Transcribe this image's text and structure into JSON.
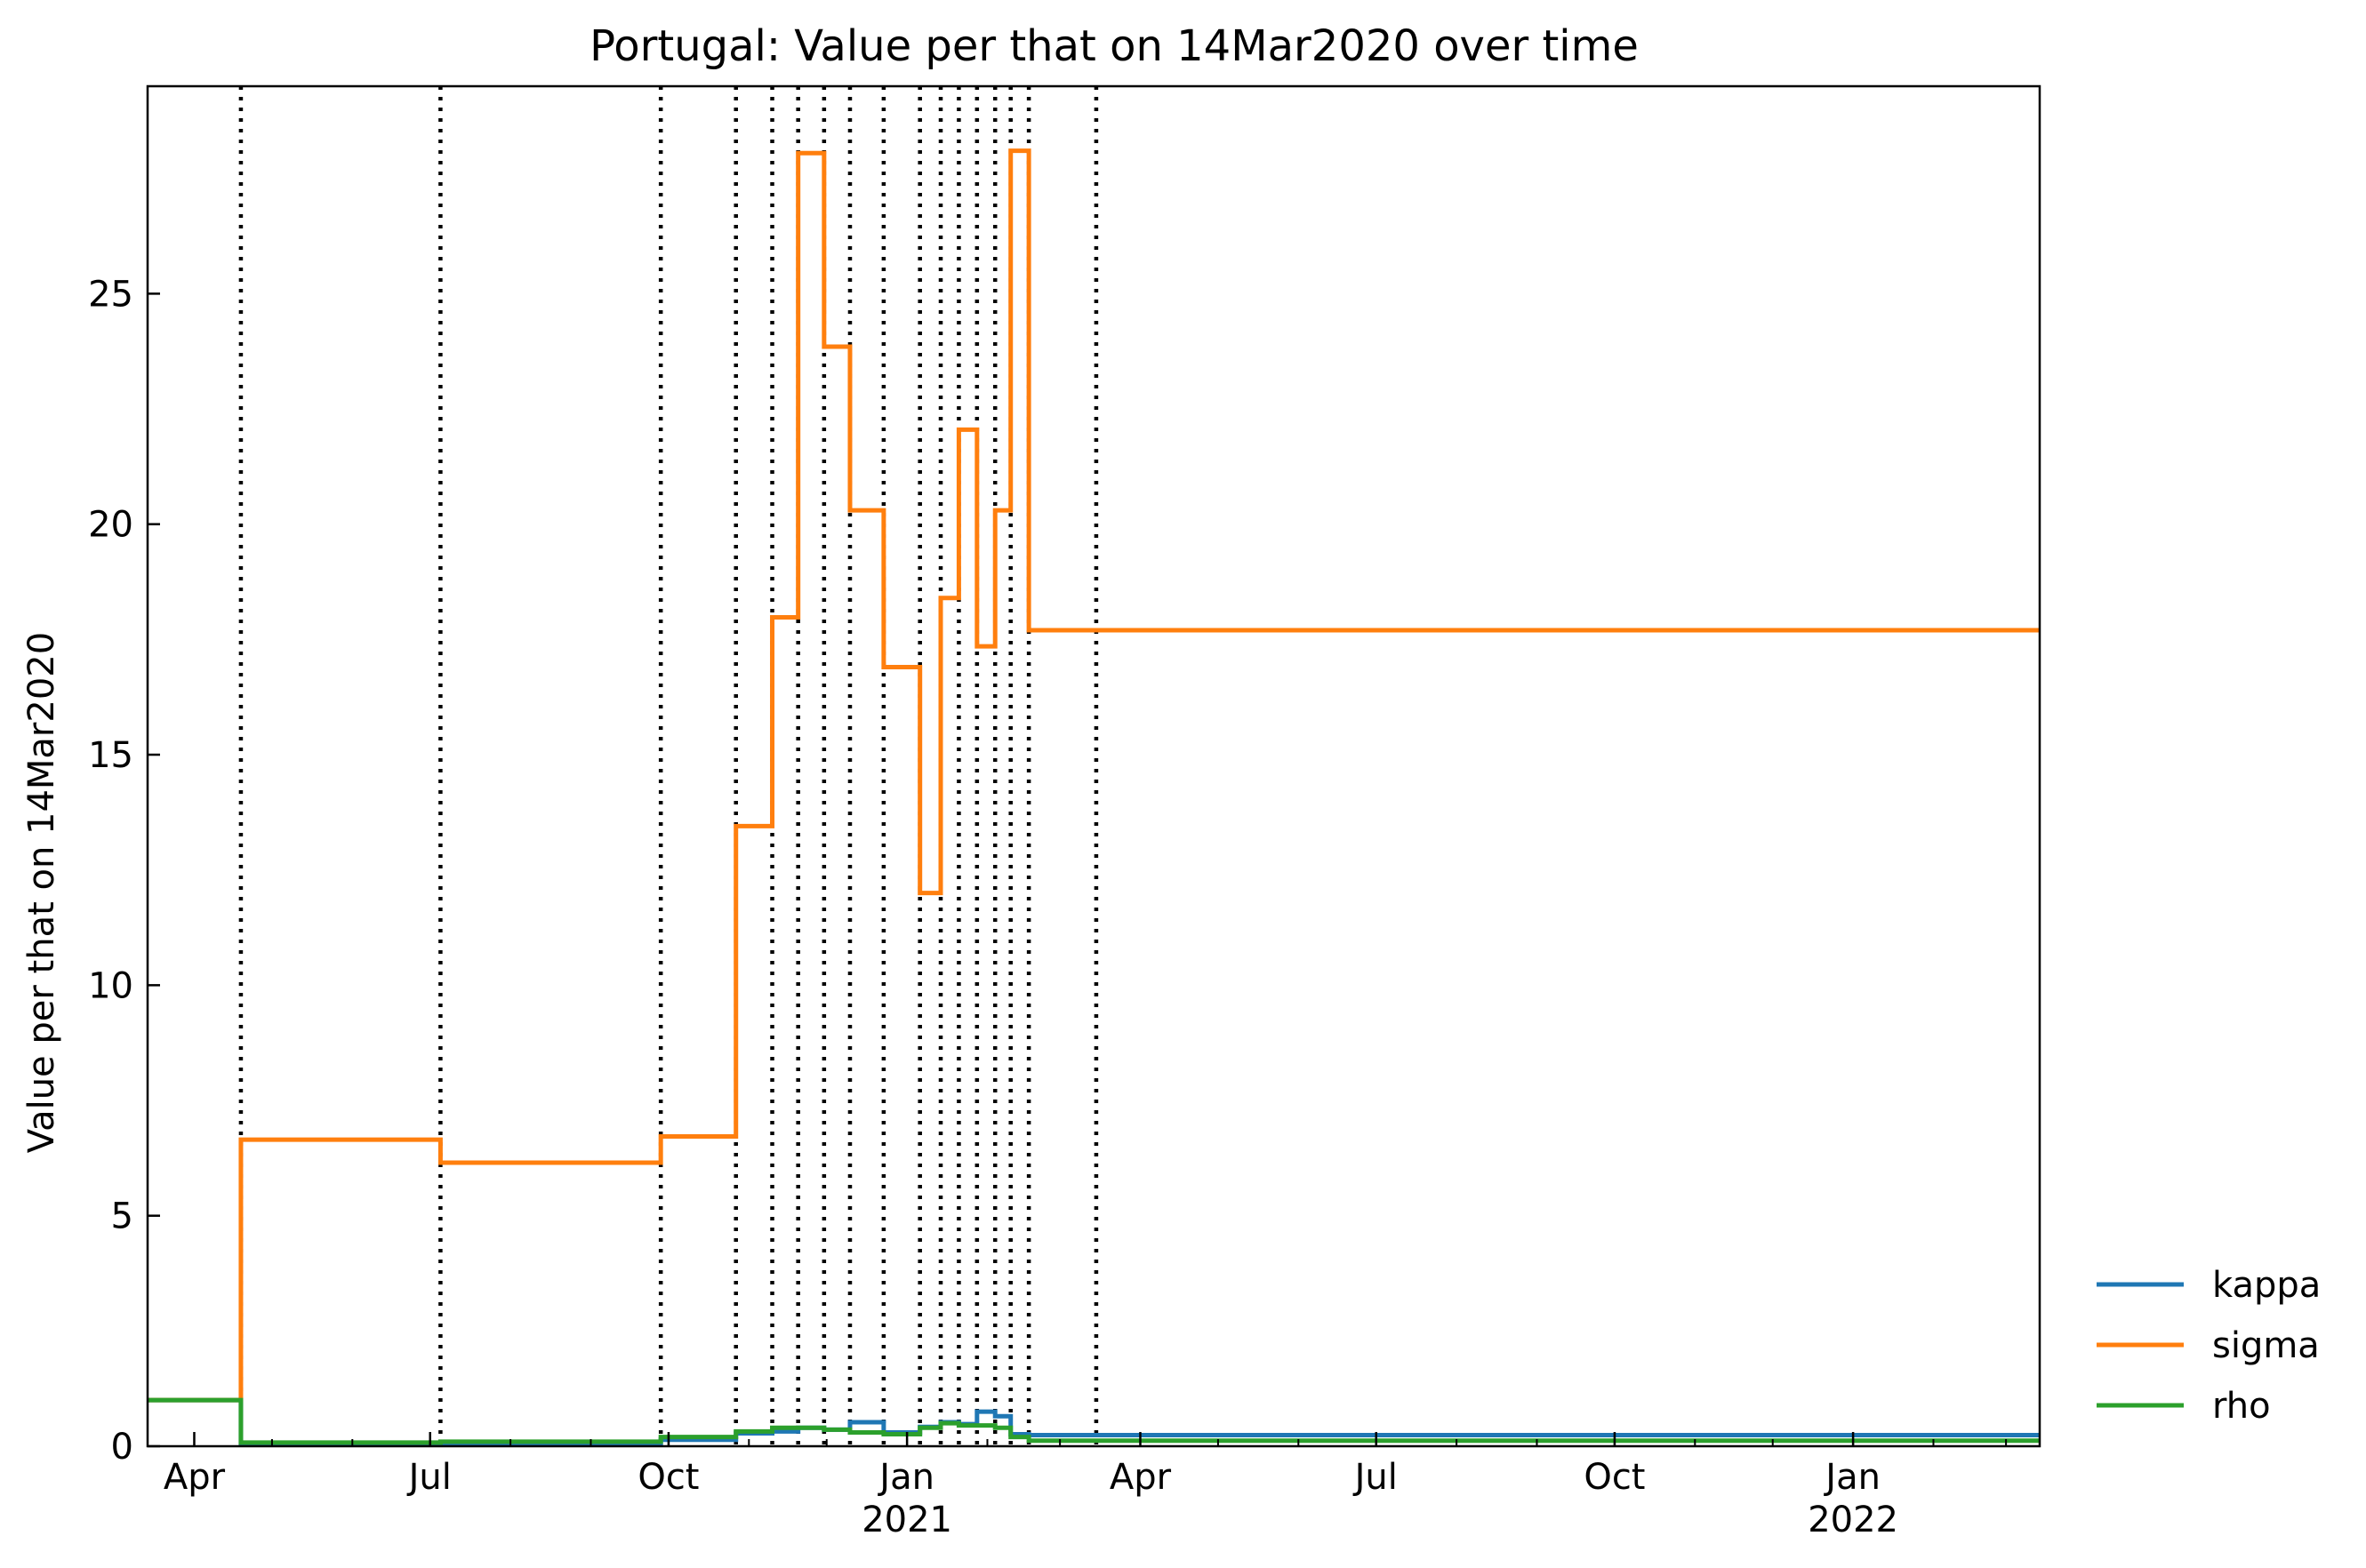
{
  "chart_data": {
    "type": "line",
    "step": "post",
    "title": "Portugal: Value per that on 14Mar2020 over time",
    "xlabel": "",
    "ylabel": "Value per that on 14Mar2020",
    "xlim": [
      "2020-03-14",
      "2022-03-14"
    ],
    "ylim": [
      0,
      29.5
    ],
    "yticks": [
      0,
      5,
      10,
      15,
      20,
      25
    ],
    "xticks": [
      {
        "date": "2020-04-01",
        "label": "Apr",
        "sublabel": ""
      },
      {
        "date": "2020-07-01",
        "label": "Jul",
        "sublabel": ""
      },
      {
        "date": "2020-10-01",
        "label": "Oct",
        "sublabel": ""
      },
      {
        "date": "2021-01-01",
        "label": "Jan",
        "sublabel": "2021"
      },
      {
        "date": "2021-04-01",
        "label": "Apr",
        "sublabel": ""
      },
      {
        "date": "2021-07-01",
        "label": "Jul",
        "sublabel": ""
      },
      {
        "date": "2021-10-01",
        "label": "Oct",
        "sublabel": ""
      },
      {
        "date": "2022-01-01",
        "label": "Jan",
        "sublabel": "2022"
      }
    ],
    "grid": false,
    "legend_position": "right-bottom, outside plot",
    "vlines": [
      "2020-04-19",
      "2020-07-05",
      "2020-09-28",
      "2020-10-27",
      "2020-11-10",
      "2020-11-20",
      "2020-11-30",
      "2020-12-10",
      "2020-12-23",
      "2021-01-06",
      "2021-01-14",
      "2021-01-21",
      "2021-01-28",
      "2021-02-04",
      "2021-02-10",
      "2021-02-17",
      "2021-03-15"
    ],
    "vline_style": "dotted black",
    "series": [
      {
        "name": "kappa",
        "color": "#1f77b4",
        "x": [
          "2020-03-14",
          "2020-04-19",
          "2020-07-05",
          "2020-09-28",
          "2020-10-27",
          "2020-11-10",
          "2020-11-20",
          "2020-11-30",
          "2020-12-10",
          "2020-12-23",
          "2021-01-06",
          "2021-01-14",
          "2021-01-21",
          "2021-01-28",
          "2021-02-04",
          "2021-02-10",
          "2021-02-17",
          "2021-03-15",
          "2022-03-14"
        ],
        "values": [
          1.0,
          0.06,
          0.05,
          0.14,
          0.28,
          0.32,
          0.4,
          0.36,
          0.52,
          0.3,
          0.42,
          0.52,
          0.48,
          0.75,
          0.65,
          0.26,
          0.24,
          0.24,
          0.24
        ]
      },
      {
        "name": "sigma",
        "color": "#ff7f0e",
        "x": [
          "2020-03-14",
          "2020-04-19",
          "2020-07-05",
          "2020-09-28",
          "2020-10-27",
          "2020-11-10",
          "2020-11-20",
          "2020-11-30",
          "2020-12-10",
          "2020-12-23",
          "2021-01-06",
          "2021-01-14",
          "2021-01-21",
          "2021-01-28",
          "2021-02-04",
          "2021-02-10",
          "2021-02-17",
          "2021-03-15",
          "2022-03-14"
        ],
        "values": [
          1.0,
          6.65,
          6.15,
          6.72,
          13.45,
          17.98,
          28.05,
          23.85,
          20.3,
          16.9,
          12.0,
          18.4,
          22.05,
          17.35,
          20.3,
          28.1,
          17.7,
          17.7,
          17.7
        ]
      },
      {
        "name": "rho",
        "color": "#2ca02c",
        "x": [
          "2020-03-14",
          "2020-04-19",
          "2020-07-05",
          "2020-09-28",
          "2020-10-27",
          "2020-11-10",
          "2020-11-20",
          "2020-11-30",
          "2020-12-10",
          "2020-12-23",
          "2021-01-06",
          "2021-01-14",
          "2021-01-21",
          "2021-01-28",
          "2021-02-04",
          "2021-02-10",
          "2021-02-17",
          "2021-03-15",
          "2022-03-14"
        ],
        "values": [
          1.0,
          0.08,
          0.1,
          0.2,
          0.32,
          0.4,
          0.4,
          0.36,
          0.3,
          0.26,
          0.4,
          0.5,
          0.45,
          0.45,
          0.4,
          0.2,
          0.12,
          0.12,
          0.12
        ]
      }
    ]
  }
}
